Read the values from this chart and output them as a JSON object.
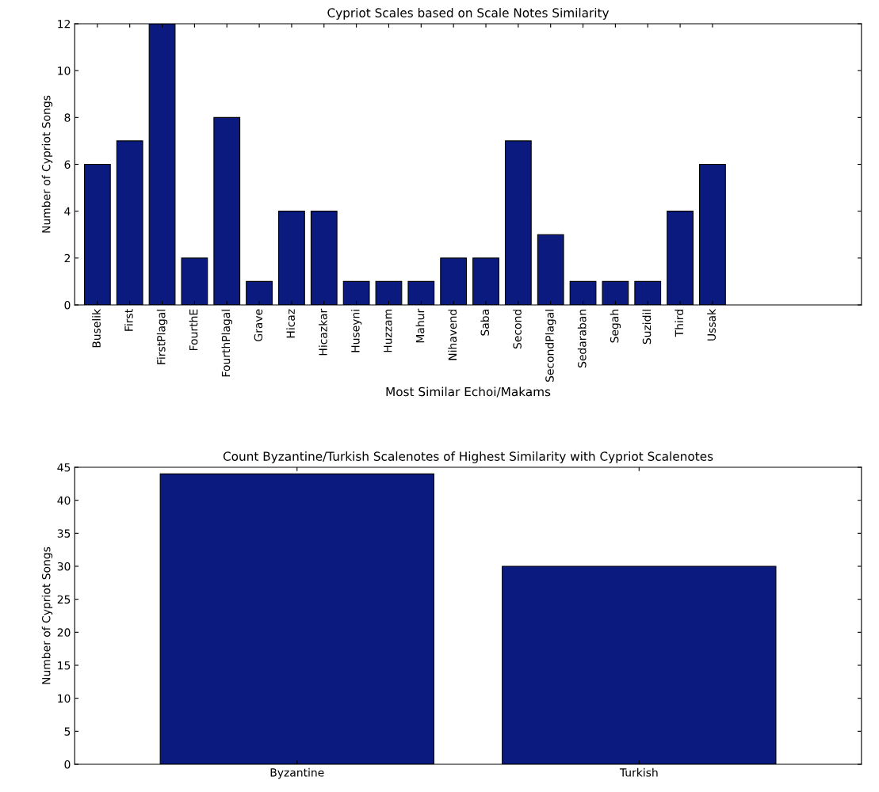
{
  "chart_data": [
    {
      "type": "bar",
      "title": "Cypriot Scales based on Scale Notes Similarity",
      "xlabel": "Most Similar Echoi/Makams",
      "ylabel": "Number of Cypriot Songs",
      "categories": [
        "Buselik",
        "First",
        "FirstPlagal",
        "FourthE",
        "FourthPlagal",
        "Grave",
        "Hicaz",
        "Hicazkar",
        "Huseyni",
        "Huzzam",
        "Mahur",
        "Nihavend",
        "Saba",
        "Second",
        "SecondPlagal",
        "Sedaraban",
        "Segah",
        "Suzidil",
        "Third",
        "Ussak"
      ],
      "values": [
        6,
        7,
        12,
        2,
        8,
        1,
        4,
        4,
        1,
        1,
        1,
        2,
        2,
        7,
        3,
        1,
        1,
        1,
        4,
        6
      ],
      "color": "#0a1a7e",
      "ylim": [
        0,
        12
      ],
      "yticks": [
        0,
        2,
        4,
        6,
        8,
        10,
        12
      ],
      "grid": false,
      "legend": false
    },
    {
      "type": "bar",
      "title": "Count Byzantine/Turkish Scalenotes of Highest Similarity with Cypriot Scalenotes",
      "ylabel": "Number of Cypriot Songs",
      "categories": [
        "Byzantine",
        "Turkish"
      ],
      "values": [
        44,
        30
      ],
      "color": "#0a1a7e",
      "ylim": [
        0,
        45
      ],
      "yticks": [
        0,
        5,
        10,
        15,
        20,
        25,
        30,
        35,
        40,
        45
      ],
      "grid": false,
      "legend": false
    }
  ]
}
